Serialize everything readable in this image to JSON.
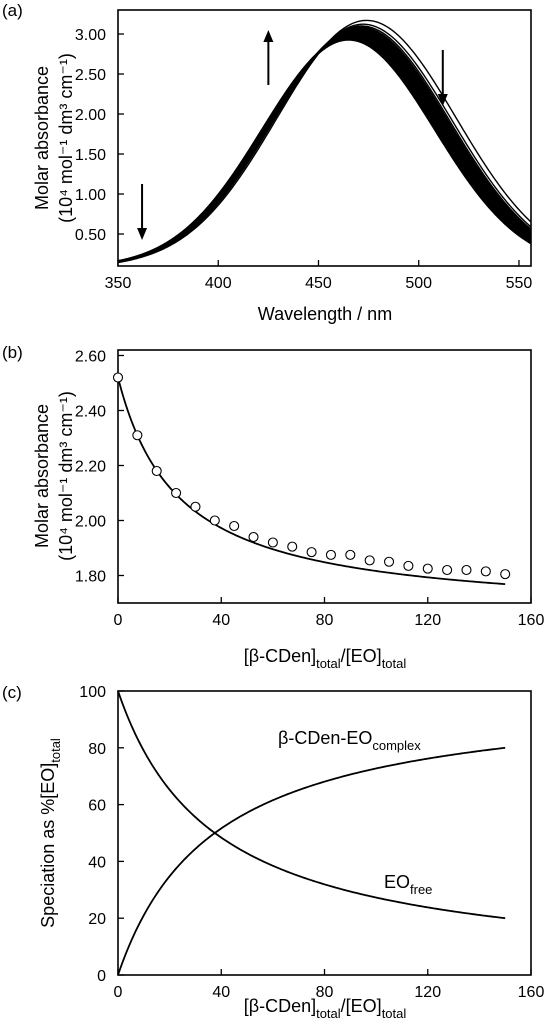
{
  "chart_data": [
    {
      "panel": "(a)",
      "type": "line",
      "xlabel": "Wavelength / nm",
      "ylabel_line1": "Molar absorbance",
      "ylabel_line2": "(10⁴ mol⁻¹ dm³ cm⁻¹)",
      "xlim": [
        350,
        556
      ],
      "ylim": [
        0.1,
        3.3
      ],
      "xticks": [
        "350",
        "400",
        "450",
        "500",
        "550"
      ],
      "yticks": [
        "0.50",
        "1.00",
        "1.50",
        "2.00",
        "2.50",
        "3.00"
      ],
      "spectra_family": {
        "count": 20,
        "first": {
          "peak_nm": 474,
          "peak_value": 3.17,
          "width_nm": 44.6
        },
        "last": {
          "peak_nm": 465,
          "peak_value": 2.93,
          "width_nm": 43.0
        },
        "baseline": 0.08
      },
      "arrows": [
        {
          "x": 362,
          "direction": "down"
        },
        {
          "x": 425,
          "direction": "up"
        },
        {
          "x": 512,
          "direction": "down"
        }
      ]
    },
    {
      "panel": "(b)",
      "type": "scatter",
      "xlabel_parts": [
        "[β-CDen]",
        "total",
        "/[EO]",
        "total"
      ],
      "ylabel_line1": "Molar absorbance",
      "ylabel_line2": "(10⁴ mol⁻¹ dm³ cm⁻¹)",
      "xlim": [
        0,
        160
      ],
      "ylim": [
        1.7,
        2.62
      ],
      "xticks": [
        "0",
        "40",
        "80",
        "120",
        "160"
      ],
      "yticks": [
        "1.80",
        "2.00",
        "2.20",
        "2.40",
        "2.60"
      ],
      "points": {
        "x": [
          0,
          7.5,
          15,
          22.5,
          30,
          37.5,
          45,
          52.5,
          60,
          67.5,
          75,
          82.5,
          90,
          97.5,
          105,
          112.5,
          120,
          127.5,
          135,
          142.5,
          150
        ],
        "y": [
          2.52,
          2.31,
          2.18,
          2.1,
          2.05,
          2.0,
          1.98,
          1.94,
          1.92,
          1.905,
          1.885,
          1.875,
          1.875,
          1.855,
          1.85,
          1.835,
          1.825,
          1.82,
          1.82,
          1.815,
          1.805
        ]
      },
      "fit": {
        "form": "y0 + A*x/(K+x)",
        "y0": 2.52,
        "A": -0.869,
        "K": 23.5
      }
    },
    {
      "panel": "(c)",
      "type": "line",
      "xlabel_parts": [
        "[β-CDen]",
        "total",
        "/[EO]",
        "total"
      ],
      "ylabel_parts": [
        "Speciation as %[EO]",
        "total"
      ],
      "xlim": [
        0,
        160
      ],
      "ylim": [
        0,
        100
      ],
      "xticks": [
        "0",
        "40",
        "80",
        "120",
        "160"
      ],
      "yticks": [
        "0",
        "20",
        "40",
        "60",
        "80",
        "100"
      ],
      "series": [
        {
          "name": "β-CDen-EO",
          "name_sub": "complex",
          "form": "100*x/(K+x)",
          "K": 37.5
        },
        {
          "name": "EO",
          "name_sub": "free",
          "form": "100*K/(K+x)",
          "K": 37.5
        }
      ],
      "x_end": 150
    }
  ]
}
